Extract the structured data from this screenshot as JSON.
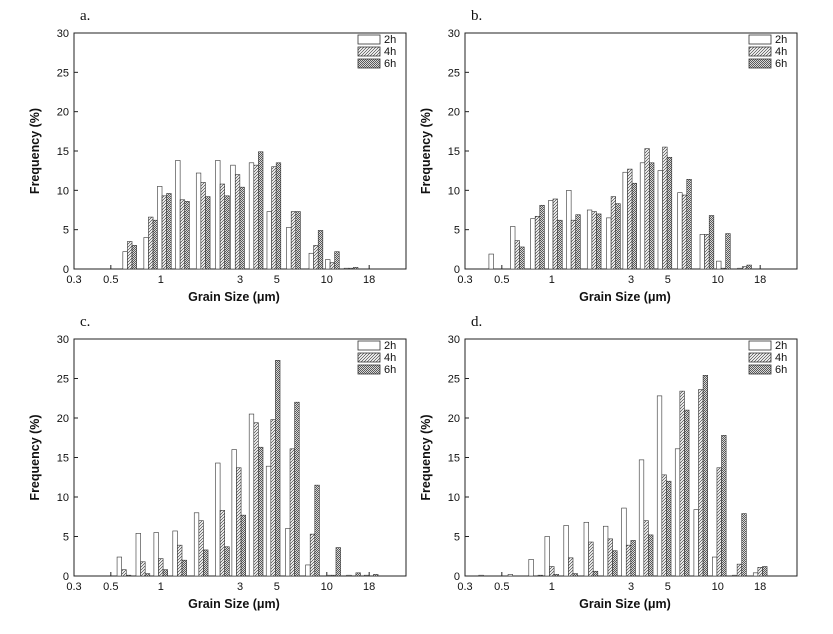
{
  "figure": {
    "description_free": true
  },
  "legend": {
    "entries": [
      {
        "name": "2h",
        "pattern": "empty"
      },
      {
        "name": "4h",
        "pattern": "hatch"
      },
      {
        "name": "6h",
        "pattern": "dots"
      }
    ]
  },
  "chart_data": [
    {
      "type": "bar",
      "panel": "a.",
      "xlabel": "Grain Size (μm)",
      "ylabel": "Frequency (%)",
      "xscale": "log",
      "xlim": [
        0.3,
        30
      ],
      "ylim": [
        0,
        30
      ],
      "xticks": [
        0.3,
        0.5,
        1,
        3,
        5,
        10,
        18
      ],
      "xtick_labels": [
        "0.3",
        "0.5",
        "1",
        "3",
        "5",
        "10",
        "18"
      ],
      "yticks": [
        0,
        5,
        10,
        15,
        20,
        25,
        30
      ],
      "ytick_labels": [
        "0",
        "5",
        "10",
        "15",
        "20",
        "25",
        "30"
      ],
      "bins": [
        0.65,
        0.87,
        1.05,
        1.35,
        1.8,
        2.35,
        2.9,
        3.75,
        4.8,
        6.3,
        8.6,
        10.8,
        14.0
      ],
      "series": [
        {
          "name": "2h",
          "values": [
            2.2,
            4.0,
            10.5,
            13.8,
            12.2,
            13.8,
            13.2,
            13.5,
            7.3,
            5.3,
            2.0,
            1.2,
            0.1
          ]
        },
        {
          "name": "4h",
          "values": [
            3.5,
            6.6,
            9.3,
            8.8,
            11.0,
            10.8,
            12.0,
            13.2,
            13.0,
            7.3,
            3.0,
            0.8,
            0.1
          ]
        },
        {
          "name": "6h",
          "values": [
            3.0,
            6.2,
            9.6,
            8.6,
            9.2,
            9.3,
            10.4,
            14.9,
            13.5,
            7.3,
            4.9,
            2.2,
            0.2
          ]
        }
      ]
    },
    {
      "type": "bar",
      "panel": "b.",
      "xlabel": "Grain Size (μm)",
      "ylabel": "Frequency (%)",
      "xscale": "log",
      "xlim": [
        0.3,
        30
      ],
      "ylim": [
        0,
        30
      ],
      "xticks": [
        0.3,
        0.5,
        1,
        3,
        5,
        10,
        18
      ],
      "xtick_labels": [
        "0.3",
        "0.5",
        "1",
        "3",
        "5",
        "10",
        "18"
      ],
      "yticks": [
        0,
        5,
        10,
        15,
        20,
        25,
        30
      ],
      "ytick_labels": [
        "0",
        "5",
        "10",
        "15",
        "20",
        "25",
        "30"
      ],
      "bins": [
        0.46,
        0.62,
        0.82,
        1.05,
        1.35,
        1.8,
        2.35,
        2.95,
        3.75,
        4.8,
        6.3,
        8.6,
        10.8,
        14.5
      ],
      "series": [
        {
          "name": "2h",
          "values": [
            1.9,
            5.4,
            6.4,
            8.7,
            10.0,
            7.5,
            6.5,
            12.3,
            13.5,
            12.5,
            9.7,
            4.4,
            1.0,
            0.1
          ]
        },
        {
          "name": "4h",
          "values": [
            0.0,
            3.6,
            6.7,
            8.9,
            6.2,
            7.3,
            9.2,
            12.7,
            15.3,
            15.5,
            9.4,
            4.4,
            0.1,
            0.3
          ]
        },
        {
          "name": "6h",
          "values": [
            0.0,
            2.8,
            8.1,
            6.2,
            6.9,
            7.0,
            8.3,
            10.9,
            13.5,
            14.2,
            11.4,
            6.8,
            4.5,
            0.5
          ]
        }
      ]
    },
    {
      "type": "bar",
      "panel": "c.",
      "xlabel": "Grain Size (μm)",
      "ylabel": "Frequency (%)",
      "xscale": "log",
      "xlim": [
        0.3,
        30
      ],
      "ylim": [
        0,
        30
      ],
      "xticks": [
        0.3,
        0.5,
        1,
        3,
        5,
        10,
        18
      ],
      "xtick_labels": [
        "0.3",
        "0.5",
        "1",
        "3",
        "5",
        "10",
        "18"
      ],
      "yticks": [
        0,
        5,
        10,
        15,
        20,
        25,
        30
      ],
      "ytick_labels": [
        "0",
        "5",
        "10",
        "15",
        "20",
        "25",
        "30"
      ],
      "bins": [
        0.6,
        0.78,
        1.0,
        1.3,
        1.75,
        2.35,
        2.95,
        3.75,
        4.75,
        6.2,
        8.2,
        11.0,
        14.5,
        18.5
      ],
      "series": [
        {
          "name": "2h",
          "values": [
            2.4,
            5.4,
            5.5,
            5.7,
            8.0,
            14.3,
            16.0,
            20.5,
            13.9,
            6.0,
            1.4,
            0.1,
            0.1,
            0.1
          ]
        },
        {
          "name": "4h",
          "values": [
            0.8,
            1.8,
            2.2,
            3.9,
            7.0,
            8.3,
            13.7,
            19.4,
            19.8,
            16.1,
            5.3,
            0.1,
            0.0,
            0.0
          ]
        },
        {
          "name": "6h",
          "values": [
            0.1,
            0.3,
            0.8,
            2.0,
            3.3,
            3.7,
            7.7,
            16.3,
            27.3,
            22.0,
            11.5,
            3.6,
            0.4,
            0.2
          ]
        }
      ]
    },
    {
      "type": "bar",
      "panel": "d.",
      "xlabel": "Grain Size (μm)",
      "ylabel": "Frequency (%)",
      "xscale": "log",
      "xlim": [
        0.3,
        30
      ],
      "ylim": [
        0,
        30
      ],
      "xticks": [
        0.3,
        0.5,
        1,
        3,
        5,
        10,
        18
      ],
      "xtick_labels": [
        "0.3",
        "0.5",
        "1",
        "3",
        "5",
        "10",
        "18"
      ],
      "yticks": [
        0,
        5,
        10,
        15,
        20,
        25,
        30
      ],
      "ytick_labels": [
        "0",
        "5",
        "10",
        "15",
        "20",
        "25",
        "30"
      ],
      "bins": [
        0.4,
        0.6,
        0.8,
        1.0,
        1.3,
        1.72,
        2.25,
        2.9,
        3.7,
        4.75,
        6.1,
        7.9,
        10.2,
        13.5,
        18.0
      ],
      "series": [
        {
          "name": "2h",
          "values": [
            0.1,
            0.2,
            2.1,
            5.0,
            6.4,
            6.8,
            6.3,
            8.6,
            14.7,
            22.8,
            16.1,
            8.4,
            2.4,
            0.1,
            0.4
          ]
        },
        {
          "name": "4h",
          "values": [
            0.0,
            0.0,
            0.0,
            1.2,
            2.3,
            4.3,
            4.7,
            3.9,
            7.0,
            12.8,
            23.4,
            23.6,
            13.7,
            1.5,
            1.1
          ]
        },
        {
          "name": "6h",
          "values": [
            0.0,
            0.0,
            0.1,
            0.2,
            0.3,
            0.6,
            3.2,
            4.5,
            5.2,
            12.0,
            21.0,
            25.4,
            17.8,
            7.9,
            1.2
          ]
        }
      ]
    }
  ]
}
